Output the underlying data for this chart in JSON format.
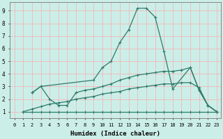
{
  "xlabel": "Humidex (Indice chaleur)",
  "bg_color": "#cceee8",
  "line_color": "#2d7a6a",
  "grid_color_major": "#f0b8b8",
  "xlim": [
    -0.5,
    23.5
  ],
  "ylim": [
    0.5,
    9.7
  ],
  "xticks": [
    0,
    1,
    2,
    3,
    4,
    5,
    6,
    7,
    8,
    9,
    10,
    11,
    12,
    13,
    14,
    15,
    16,
    17,
    18,
    19,
    20,
    21,
    22,
    23
  ],
  "yticks": [
    1,
    2,
    3,
    4,
    5,
    6,
    7,
    8,
    9
  ],
  "line_flat_x": [
    1,
    2,
    3,
    4,
    5,
    6,
    7,
    8,
    9,
    10,
    11,
    12,
    13,
    14,
    15,
    16,
    17,
    18,
    19,
    20,
    21,
    22,
    23
  ],
  "line_flat_y": [
    1,
    1,
    1,
    1,
    1,
    1,
    1,
    1,
    1,
    1,
    1,
    1,
    1,
    1,
    1,
    1,
    1,
    1,
    1,
    1,
    1,
    1,
    1
  ],
  "line_slow_x": [
    1,
    2,
    3,
    4,
    5,
    6,
    7,
    8,
    9,
    10,
    11,
    12,
    13,
    14,
    15,
    16,
    17,
    18,
    19,
    20,
    21,
    22,
    23
  ],
  "line_slow_y": [
    1,
    1.2,
    1.4,
    1.6,
    1.7,
    1.8,
    2.0,
    2.1,
    2.2,
    2.4,
    2.5,
    2.6,
    2.8,
    2.9,
    3.0,
    3.1,
    3.2,
    3.2,
    3.3,
    3.3,
    2.9,
    1.5,
    1.0
  ],
  "line_medium_x": [
    2,
    3,
    4,
    5,
    6,
    7,
    8,
    9,
    10,
    11,
    12,
    13,
    14,
    15,
    16,
    17,
    18,
    19,
    20,
    21,
    22,
    23
  ],
  "line_medium_y": [
    2.5,
    3.0,
    2.0,
    1.5,
    1.5,
    2.5,
    2.7,
    2.8,
    3.0,
    3.2,
    3.5,
    3.7,
    3.9,
    4.0,
    4.1,
    4.2,
    4.2,
    4.3,
    4.5,
    2.7,
    1.5,
    1.0
  ],
  "line_main_x": [
    2,
    3,
    9,
    10,
    11,
    12,
    13,
    14,
    15,
    16,
    17,
    18,
    20,
    21,
    22,
    23
  ],
  "line_main_y": [
    2.5,
    3.0,
    3.5,
    4.5,
    5.0,
    6.5,
    7.5,
    9.2,
    9.2,
    8.5,
    5.8,
    2.8,
    4.5,
    2.7,
    1.5,
    1.0
  ]
}
